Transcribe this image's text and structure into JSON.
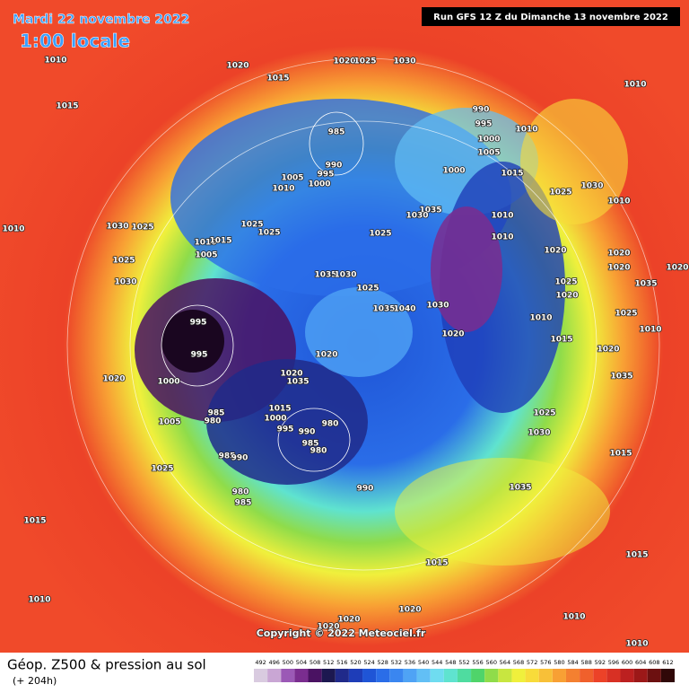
{
  "header": {
    "date": "Mardi 22 novembre 2022",
    "time": "1:00 locale",
    "run": "Run GFS 12 Z du Dimanche 13 novembre 2022"
  },
  "footer": {
    "title": "Géop. Z500 & pression au sol",
    "lead": "(+ 204h)",
    "copyright": "Copyright © 2022 Meteociel.fr"
  },
  "isobar_labels": [
    1010,
    1020,
    1015,
    1020,
    1025,
    1030,
    1010,
    1015,
    990,
    995,
    985,
    1000,
    1010,
    990,
    1005,
    1000,
    1015,
    995,
    1005,
    1000,
    1010,
    1025,
    1030,
    1010,
    1035,
    1030,
    1010,
    1010,
    1030,
    1025,
    1025,
    1025,
    1025,
    1010,
    1010,
    1015,
    1005,
    1025,
    1020,
    1020,
    1020,
    1020,
    1035,
    1030,
    1025,
    1030,
    1025,
    1035,
    1020,
    1035,
    1040,
    1030,
    1025,
    995,
    1010,
    1010,
    1020,
    1015,
    995,
    1020,
    1020,
    1020,
    1000,
    1035,
    1020,
    1035,
    1015,
    985,
    1000,
    980,
    980,
    1005,
    995,
    990,
    1025,
    985,
    980,
    1030,
    985,
    990,
    1015,
    1025,
    1035,
    990,
    980,
    985,
    1015,
    1015,
    1015,
    1010,
    1020,
    1010,
    1020,
    1020,
    1010
  ],
  "colorbar": {
    "values": [
      492,
      496,
      500,
      504,
      508,
      512,
      516,
      520,
      524,
      528,
      532,
      536,
      540,
      544,
      548,
      552,
      556,
      560,
      564,
      568,
      572,
      576,
      580,
      584,
      588,
      592,
      596,
      600,
      604,
      608,
      612
    ],
    "colors": [
      "#d9cbe0",
      "#c9a6d4",
      "#9b59b6",
      "#7a2d8f",
      "#4a1262",
      "#1c1850",
      "#202a8a",
      "#1e3db8",
      "#1f55d6",
      "#2a6de8",
      "#3a86f0",
      "#4fa3f5",
      "#62bff5",
      "#6fdcf0",
      "#5fe3cf",
      "#4fdca0",
      "#4fd46a",
      "#8fdc4a",
      "#c8e640",
      "#f0f03c",
      "#f8dc3a",
      "#f8c038",
      "#f8a034",
      "#f48030",
      "#f0602c",
      "#ec4228",
      "#d83024",
      "#bc2020",
      "#9c1818",
      "#6c1010",
      "#300808"
    ]
  }
}
